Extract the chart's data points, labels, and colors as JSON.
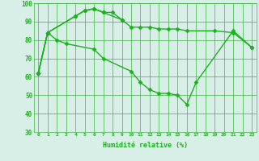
{
  "xlabel": "Humidité relative (%)",
  "line1_x": [
    0,
    1,
    4,
    5,
    6,
    7,
    8,
    9
  ],
  "line1_y": [
    62,
    84,
    93,
    96,
    97,
    95,
    95,
    91
  ],
  "line2_x": [
    0,
    1,
    4,
    5,
    6,
    7,
    9,
    10,
    11,
    12,
    13,
    14,
    15,
    16,
    19,
    21,
    23
  ],
  "line2_y": [
    62,
    84,
    93,
    96,
    97,
    95,
    91,
    87,
    87,
    87,
    86,
    86,
    86,
    85,
    85,
    84,
    76
  ],
  "line3_x": [
    0,
    1,
    2,
    3,
    6,
    7,
    10,
    11,
    12,
    13,
    14,
    15,
    16,
    17,
    21,
    23
  ],
  "line3_y": [
    62,
    84,
    80,
    78,
    75,
    70,
    63,
    57,
    53,
    51,
    51,
    50,
    45,
    57,
    85,
    76
  ],
  "ylim": [
    30,
    100
  ],
  "xlim": [
    -0.5,
    23.5
  ],
  "bg_color": "#d8efe8",
  "grid_color": "#3db83d",
  "line_color": "#1ab21a",
  "marker": "D",
  "marker_size": 2.5,
  "linewidth": 1.0
}
